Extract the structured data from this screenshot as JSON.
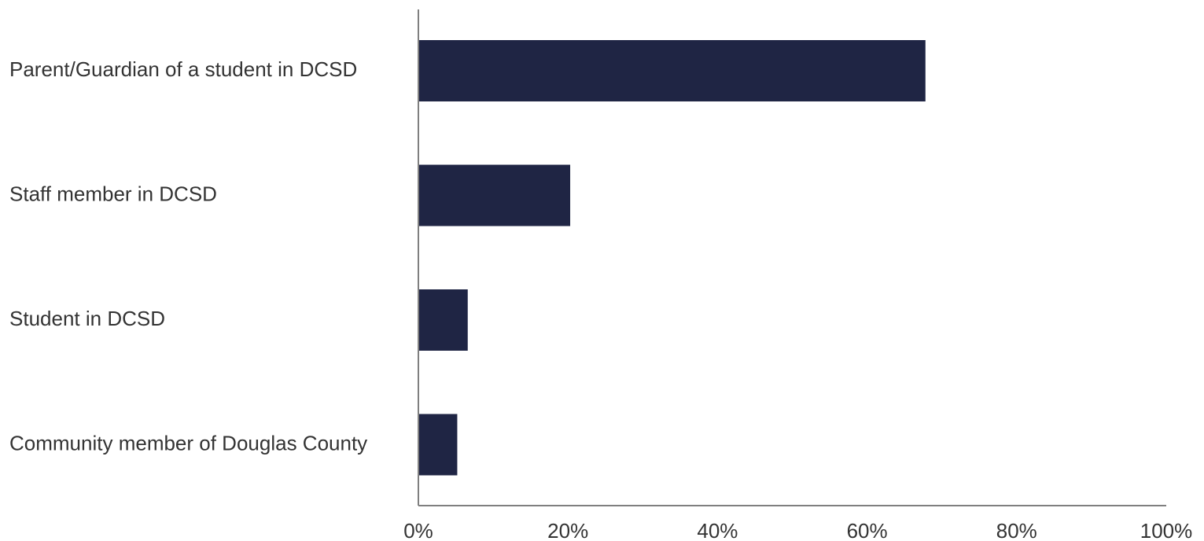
{
  "chart_data": {
    "type": "bar",
    "orientation": "horizontal",
    "title": "",
    "xlabel": "",
    "ylabel": "",
    "categories": [
      "Parent/Guardian of a student in DCSD",
      "Staff member in DCSD",
      "Student in DCSD",
      "Community member of Douglas County"
    ],
    "values": [
      67.8,
      20.3,
      6.6,
      5.2
    ],
    "xlim": [
      0,
      100
    ],
    "xticks": [
      0,
      20,
      40,
      60,
      80,
      100
    ],
    "xtick_labels": [
      "0%",
      "20%",
      "40%",
      "60%",
      "80%",
      "100%"
    ],
    "grid": false,
    "legend": "none",
    "colors": {
      "bar": "#1f2544",
      "axis": "#7f7f7f",
      "text": "#333333"
    }
  }
}
